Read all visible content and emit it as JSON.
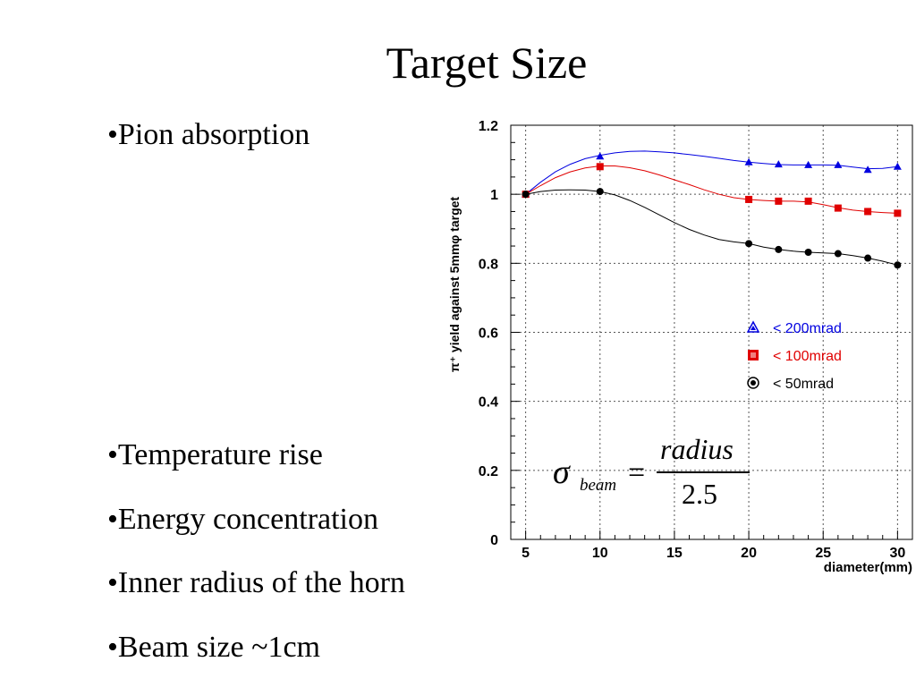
{
  "slide": {
    "title": "Target Size",
    "bullets": [
      "•Pion absorption",
      "•Temperature rise",
      "•Energy concentration",
      "•Inner radius of the horn",
      "•Beam size  ~1cm"
    ]
  },
  "formula": {
    "symbol": "σ",
    "subscript": "beam",
    "equals": "=",
    "numerator": "radius",
    "denominator": "2.5"
  },
  "chart_data": {
    "type": "line",
    "xlabel": "diameter(mm)",
    "ylabel": "π⁺ yield against 5mmφ target",
    "xlim": [
      4,
      31
    ],
    "ylim": [
      0,
      1.2
    ],
    "xticks": [
      5,
      10,
      15,
      20,
      25,
      30
    ],
    "yticks": [
      0,
      0.2,
      0.4,
      0.6,
      0.8,
      1,
      1.2
    ],
    "grid": true,
    "legend_position": "center-right",
    "series": [
      {
        "name": "< 200mrad",
        "color": "#0000e0",
        "marker": "triangle",
        "x": [
          5,
          10,
          20,
          22,
          24,
          26,
          28,
          30
        ],
        "y": [
          1.0,
          1.11,
          1.093,
          1.087,
          1.085,
          1.085,
          1.071,
          1.08
        ],
        "curve_x": [
          5,
          6,
          7,
          8,
          9,
          10,
          11,
          12,
          13,
          14,
          15,
          16,
          17,
          18,
          19,
          20,
          21,
          22,
          23,
          24,
          25,
          26,
          27,
          28,
          29,
          30
        ],
        "curve_y": [
          1.0,
          1.035,
          1.065,
          1.087,
          1.103,
          1.113,
          1.12,
          1.124,
          1.125,
          1.123,
          1.12,
          1.115,
          1.11,
          1.104,
          1.098,
          1.093,
          1.089,
          1.086,
          1.085,
          1.085,
          1.085,
          1.084,
          1.079,
          1.074,
          1.075,
          1.08
        ]
      },
      {
        "name": "< 100mrad",
        "color": "#e00000",
        "marker": "square",
        "x": [
          5,
          10,
          20,
          22,
          24,
          26,
          28,
          30
        ],
        "y": [
          1.0,
          1.08,
          0.985,
          0.98,
          0.98,
          0.96,
          0.95,
          0.945
        ],
        "curve_x": [
          5,
          6,
          7,
          8,
          9,
          10,
          11,
          12,
          13,
          14,
          15,
          16,
          17,
          18,
          19,
          20,
          21,
          22,
          23,
          24,
          25,
          26,
          27,
          28,
          29,
          30
        ],
        "curve_y": [
          1.0,
          1.025,
          1.048,
          1.065,
          1.076,
          1.082,
          1.082,
          1.077,
          1.068,
          1.056,
          1.042,
          1.028,
          1.013,
          1.0,
          0.99,
          0.985,
          0.982,
          0.98,
          0.98,
          0.978,
          0.97,
          0.961,
          0.954,
          0.95,
          0.947,
          0.945
        ]
      },
      {
        "name": "< 50mrad",
        "color": "#000000",
        "marker": "circle",
        "x": [
          5,
          10,
          20,
          22,
          24,
          26,
          28,
          30
        ],
        "y": [
          1.0,
          1.008,
          0.857,
          0.84,
          0.832,
          0.828,
          0.815,
          0.795
        ],
        "curve_x": [
          5,
          6,
          7,
          8,
          9,
          10,
          11,
          12,
          13,
          14,
          15,
          16,
          17,
          18,
          19,
          20,
          21,
          22,
          23,
          24,
          25,
          26,
          27,
          28,
          29,
          30
        ],
        "curve_y": [
          1.0,
          1.008,
          1.012,
          1.013,
          1.012,
          1.008,
          0.998,
          0.982,
          0.962,
          0.94,
          0.918,
          0.898,
          0.882,
          0.869,
          0.862,
          0.857,
          0.847,
          0.84,
          0.835,
          0.832,
          0.83,
          0.828,
          0.822,
          0.815,
          0.806,
          0.795
        ]
      }
    ]
  }
}
